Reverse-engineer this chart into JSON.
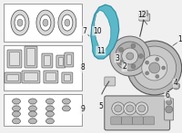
{
  "bg_color": "#f0f0f0",
  "splash_shield_color": "#5ab8c8",
  "splash_shield_edge": "#2a88a0",
  "line_color": "#444444",
  "dark_gray": "#666666",
  "mid_gray": "#999999",
  "light_gray": "#cccccc",
  "box_edge": "#888888",
  "white": "#ffffff",
  "figsize": [
    2.0,
    1.47
  ],
  "dpi": 100
}
